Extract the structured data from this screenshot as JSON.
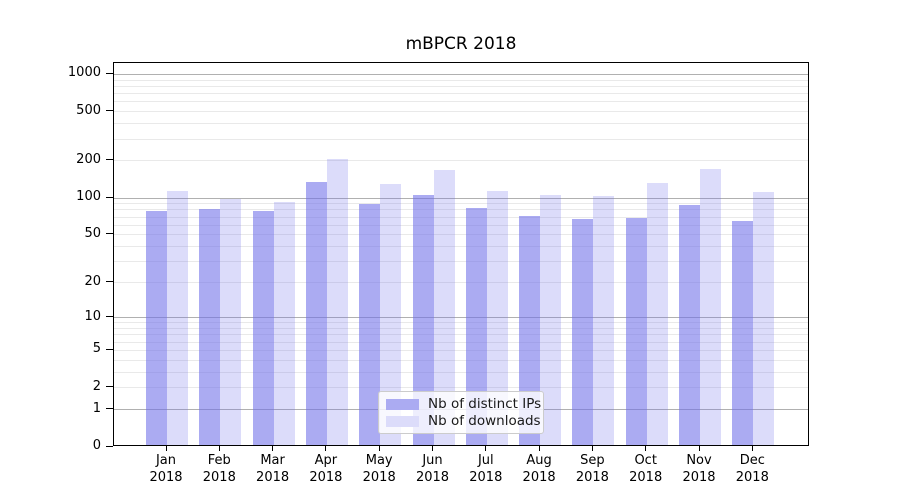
{
  "chart_data": {
    "type": "bar",
    "title": "mBPCR 2018",
    "categories": [
      "Jan 2018",
      "Feb 2018",
      "Mar 2018",
      "Apr 2018",
      "May 2018",
      "Jun 2018",
      "Jul 2018",
      "Aug 2018",
      "Sep 2018",
      "Oct 2018",
      "Nov 2018",
      "Dec 2018"
    ],
    "series": [
      {
        "name": "Nb of distinct IPs",
        "color": "#ababf2",
        "fill": "rgba(110,110,233,0.58)",
        "values": [
          75,
          78,
          75,
          130,
          86,
          103,
          80,
          69,
          65,
          66,
          84,
          63
        ]
      },
      {
        "name": "Nb of downloads",
        "color": "#dcdcfa",
        "fill": "rgba(110,110,233,0.24)",
        "values": [
          110,
          94,
          89,
          200,
          125,
          162,
          110,
          103,
          101,
          128,
          165,
          107
        ]
      }
    ],
    "yscale": "log1p",
    "ylim": [
      0,
      1000
    ],
    "yticks": [
      0,
      1,
      2,
      5,
      10,
      20,
      50,
      100,
      200,
      500,
      1000
    ],
    "minor_grid_values": [
      2,
      3,
      4,
      5,
      6,
      7,
      8,
      9,
      20,
      30,
      40,
      50,
      60,
      70,
      80,
      90,
      200,
      300,
      400,
      500,
      600,
      700,
      800,
      900
    ],
    "major_grid_values": [
      1,
      10,
      100,
      1000
    ],
    "grid": true,
    "legend_position": "lower center",
    "axis_color": "#000000",
    "major_grid_color": "#b0b0b0",
    "minor_grid_color": "#e9e9e9",
    "background_color": "#ffffff"
  }
}
